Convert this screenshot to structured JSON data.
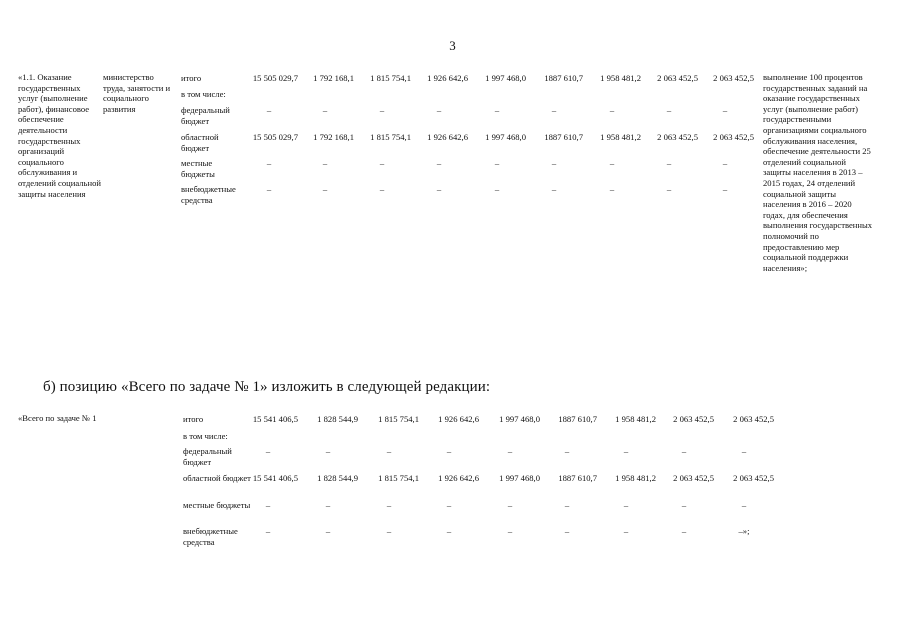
{
  "page_number": "3",
  "section1": {
    "task": "«1.1. Оказание государственных услуг (выполнение работ), финансовое обеспечение деятельности государственных организаций социального обслуживания и отделений социальной защиты населения",
    "executor": "министерство труда, занятости и социального развития",
    "rows": [
      {
        "label": "итого",
        "values": [
          "15 505 029,7",
          "1 792 168,1",
          "1 815 754,1",
          "1 926 642,6",
          "1 997 468,0",
          "1887 610,7",
          "1 958 481,2",
          "2 063 452,5",
          "2 063 452,5"
        ]
      },
      {
        "label": "в том числе:",
        "values": []
      },
      {
        "label": "федеральный бюджет",
        "values": [
          "–",
          "–",
          "–",
          "–",
          "–",
          "–",
          "–",
          "–",
          "–"
        ]
      },
      {
        "label": "областной бюджет",
        "values": [
          "15 505 029,7",
          "1 792 168,1",
          "1 815 754,1",
          "1 926 642,6",
          "1 997 468,0",
          "1887 610,7",
          "1 958 481,2",
          "2 063 452,5",
          "2 063 452,5"
        ]
      },
      {
        "label": "местные бюджеты",
        "values": [
          "–",
          "–",
          "–",
          "–",
          "–",
          "–",
          "–",
          "–",
          "–"
        ]
      },
      {
        "label": "внебюджетные средства",
        "values": [
          "–",
          "–",
          "–",
          "–",
          "–",
          "–",
          "–",
          "–",
          "–"
        ]
      }
    ],
    "result": "выполнение 100 процентов государственных заданий на оказание государственных услуг (выполнение работ) государственными организациями социального обслуживания населения, обеспечение деятельности 25 отделений социальной защиты населения в 2013 – 2015 годах, 24 отделений социальной защиты населения в 2016 – 2020 годах, для обеспечения выполнения государственных полномочий по предоставлению мер социальной поддержки населения»;"
  },
  "heading": "б)  позицию «Всего по задаче № 1» изложить в следующей редакции:",
  "section2": {
    "task": "«Всего по задаче № 1",
    "rows": [
      {
        "label": "итого",
        "values": [
          "15 541 406,5",
          "1 828 544,9",
          "1 815 754,1",
          "1 926 642,6",
          "1 997 468,0",
          "1887 610,7",
          "1 958 481,2",
          "2 063 452,5",
          "2 063 452,5"
        ]
      },
      {
        "label": "в том числе:",
        "values": []
      },
      {
        "label": "федеральный бюджет",
        "values": [
          "–",
          "–",
          "–",
          "–",
          "–",
          "–",
          "–",
          "–",
          "–"
        ]
      },
      {
        "label": "областной бюджет",
        "values": [
          "15 541 406,5",
          "1 828 544,9",
          "1 815 754,1",
          "1 926 642,6",
          "1 997 468,0",
          "1887 610,7",
          "1 958 481,2",
          "2 063 452,5",
          "2 063 452,5"
        ]
      },
      {
        "label": "местные бюджеты",
        "values": [
          "–",
          "–",
          "–",
          "–",
          "–",
          "–",
          "–",
          "–",
          "–"
        ]
      },
      {
        "label": "внебюджетные средства",
        "values": [
          "–",
          "–",
          "–",
          "–",
          "–",
          "–",
          "–",
          "–",
          "–»;"
        ]
      }
    ]
  }
}
